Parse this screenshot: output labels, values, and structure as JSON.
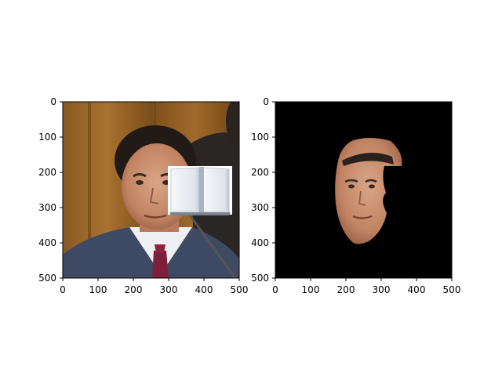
{
  "chart_data": [
    {
      "type": "image",
      "content": "photo of a man in a suit with a white book icon overlaid on the right side of his face",
      "xlim": [
        0,
        500
      ],
      "ylim": [
        500,
        0
      ],
      "x_ticks": [
        0,
        100,
        200,
        300,
        400,
        500
      ],
      "y_ticks": [
        0,
        100,
        200,
        300,
        400,
        500
      ],
      "x_tick_labels": [
        "0",
        "100",
        "200",
        "300",
        "400",
        "500"
      ],
      "y_tick_labels": [
        "0",
        "100",
        "200",
        "300",
        "400",
        "500"
      ]
    },
    {
      "type": "image",
      "content": "segmented face region on black background, right side cut out",
      "background_color": "#000000",
      "xlim": [
        0,
        500
      ],
      "ylim": [
        500,
        0
      ],
      "x_ticks": [
        0,
        100,
        200,
        300,
        400,
        500
      ],
      "y_ticks": [
        0,
        100,
        200,
        300,
        400,
        500
      ],
      "x_tick_labels": [
        "0",
        "100",
        "200",
        "300",
        "400",
        "500"
      ],
      "y_tick_labels": [
        "0",
        "100",
        "200",
        "300",
        "400",
        "500"
      ]
    }
  ]
}
